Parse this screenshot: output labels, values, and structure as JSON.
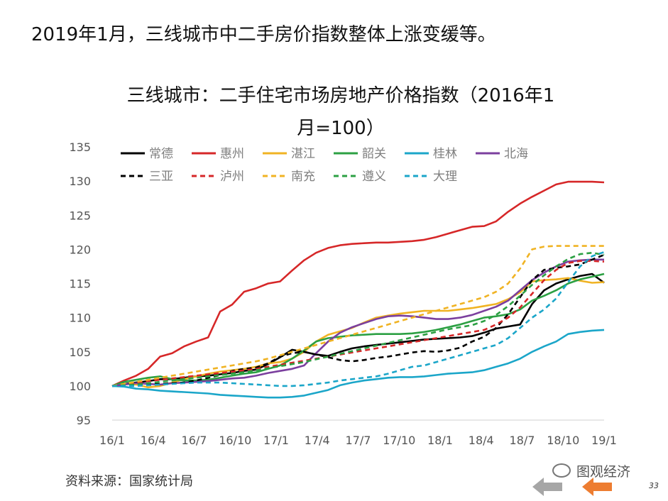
{
  "headline": "2019年1月，三线城市中二手房价指数整体上涨变缓等。",
  "source": "资料来源：国家统计局",
  "brand": "图观经济",
  "page_number": "33",
  "nav": {
    "prev_icon": "arrow-left-icon",
    "next_icon": "arrow-left-icon",
    "prev_color": "#a6a6a6",
    "next_color": "#ed7d31"
  },
  "chart_data": {
    "type": "line",
    "title_line1": "三线城市：二手住宅市场房地产价格指数（2016年1",
    "title_line2": "月=100）",
    "x_tick_labels": [
      "16/1",
      "16/4",
      "16/7",
      "16/10",
      "17/1",
      "17/4",
      "17/7",
      "17/10",
      "18/1",
      "18/4",
      "18/7",
      "18/10",
      "19/1"
    ],
    "ylim": [
      95,
      135
    ],
    "y_ticks": [
      95,
      100,
      105,
      110,
      115,
      120,
      125,
      130,
      135
    ],
    "legend_position": "top-left",
    "grid": false,
    "series": [
      {
        "name": "常德",
        "color": "#000000",
        "dash": false,
        "values": [
          100,
          100.3,
          100.5,
          100.7,
          101,
          101,
          101.2,
          101.4,
          101.5,
          101.7,
          101.9,
          102.2,
          102.4,
          103.2,
          104.2,
          105.3,
          105,
          104.6,
          104.4,
          105,
          105.5,
          105.8,
          106,
          106.2,
          106.4,
          106.6,
          106.8,
          106.9,
          107,
          107.1,
          107.3,
          107.8,
          108.4,
          108.7,
          109,
          112,
          114,
          115,
          115.6,
          116.1,
          116.4,
          115.1
        ]
      },
      {
        "name": "惠州",
        "color": "#d62728",
        "dash": false,
        "values": [
          100,
          100.8,
          101.5,
          102.5,
          104.3,
          104.8,
          105.8,
          106.5,
          107.1,
          110.9,
          111.9,
          113.8,
          114.3,
          115,
          115.3,
          116.9,
          118.4,
          119.5,
          120.2,
          120.6,
          120.8,
          120.9,
          121,
          121,
          121.1,
          121.2,
          121.4,
          121.8,
          122.3,
          122.8,
          123.3,
          123.4,
          124.1,
          125.5,
          126.7,
          127.7,
          128.6,
          129.5,
          129.9,
          129.9,
          129.9,
          129.8
        ]
      },
      {
        "name": "湛江",
        "color": "#f0b323",
        "dash": false,
        "values": [
          100,
          100.3,
          100.2,
          99.8,
          100,
          100.5,
          101,
          101.4,
          101.8,
          102.1,
          102.3,
          102.5,
          102.8,
          103.3,
          103.5,
          104,
          105,
          106.5,
          107.5,
          108,
          108.5,
          109.3,
          110,
          110.3,
          110.6,
          110.8,
          111,
          111,
          111,
          111.2,
          111.4,
          111.7,
          112,
          112.7,
          113.7,
          115.3,
          115.5,
          115.6,
          115.8,
          115.4,
          115.1,
          115.2
        ]
      },
      {
        "name": "韶关",
        "color": "#2ca043",
        "dash": false,
        "values": [
          100,
          100.6,
          100.9,
          101.2,
          101.4,
          101,
          100.8,
          100.8,
          100.9,
          101.2,
          101.5,
          101.8,
          102,
          102.5,
          103,
          104,
          105.2,
          106.5,
          107,
          107.2,
          107.4,
          107.5,
          107.6,
          107.6,
          107.6,
          107.7,
          107.9,
          108.2,
          108.6,
          109,
          109.5,
          110,
          110.2,
          110.5,
          111.2,
          112.5,
          113.2,
          114,
          115,
          115.6,
          116,
          116.4
        ]
      },
      {
        "name": "桂林",
        "color": "#1ba6c9",
        "dash": false,
        "values": [
          100,
          99.9,
          99.6,
          99.5,
          99.3,
          99.2,
          99.1,
          99,
          98.9,
          98.7,
          98.6,
          98.5,
          98.4,
          98.3,
          98.3,
          98.4,
          98.6,
          99,
          99.4,
          100.1,
          100.5,
          100.8,
          101,
          101.2,
          101.3,
          101.3,
          101.4,
          101.6,
          101.8,
          101.9,
          102,
          102.3,
          102.8,
          103.3,
          104,
          105,
          105.8,
          106.5,
          107.6,
          107.9,
          108.1,
          108.2
        ]
      },
      {
        "name": "北海",
        "color": "#7b3f9e",
        "dash": false,
        "values": [
          100,
          100.2,
          100.4,
          100.3,
          100.2,
          100.4,
          100.5,
          100.6,
          100.7,
          100.9,
          101.1,
          101.2,
          101.5,
          101.9,
          102.2,
          102.5,
          103,
          104.8,
          106.5,
          107.8,
          108.6,
          109.2,
          109.8,
          110.2,
          110.3,
          110.2,
          110,
          109.8,
          109.8,
          110,
          110.4,
          111,
          111.6,
          112.5,
          114,
          115.5,
          116.6,
          117.5,
          118.2,
          118.4,
          118.5,
          118.5
        ]
      },
      {
        "name": "三亚",
        "color": "#000000",
        "dash": true,
        "values": [
          100,
          100.1,
          100.2,
          100.3,
          100.3,
          100.4,
          100.5,
          100.8,
          101.2,
          101.6,
          102.2,
          102.5,
          102.7,
          103.3,
          104.3,
          104.8,
          105,
          104.6,
          104.2,
          103.8,
          103.6,
          103.8,
          104.1,
          104.3,
          104.6,
          104.9,
          105.1,
          105,
          105.2,
          105.6,
          106.5,
          107.2,
          108.5,
          110.5,
          113,
          115.5,
          117,
          117.3,
          117.5,
          117.8,
          118.5,
          119.2
        ]
      },
      {
        "name": "泸州",
        "color": "#d62728",
        "dash": true,
        "values": [
          100,
          100.3,
          100.5,
          100.7,
          100.9,
          101.1,
          101.3,
          101.5,
          101.7,
          101.9,
          102.1,
          102.3,
          102.5,
          102.8,
          103.1,
          103.4,
          103.7,
          104,
          104.3,
          104.6,
          104.9,
          105.2,
          105.5,
          105.8,
          106.1,
          106.4,
          106.7,
          107,
          107.3,
          107.6,
          107.9,
          108.2,
          109,
          110,
          111.5,
          113.5,
          115.5,
          117,
          118,
          118.3,
          118.3,
          118.2
        ]
      },
      {
        "name": "南充",
        "color": "#f0b323",
        "dash": true,
        "values": [
          100,
          100.3,
          100.6,
          100.9,
          101.2,
          101.5,
          101.8,
          102.1,
          102.4,
          102.7,
          103,
          103.3,
          103.6,
          104,
          104.5,
          105,
          105.5,
          106,
          106.5,
          107,
          107.5,
          108,
          108.5,
          109,
          109.5,
          110,
          110.5,
          111,
          111.5,
          112,
          112.5,
          113,
          113.8,
          115,
          117.2,
          120,
          120.4,
          120.5,
          120.5,
          120.5,
          120.5,
          120.5
        ]
      },
      {
        "name": "遵义",
        "color": "#2ca043",
        "dash": true,
        "values": [
          100,
          100.1,
          100.2,
          100.4,
          100.6,
          100.8,
          101,
          101.2,
          101.4,
          101.6,
          101.8,
          102,
          102.3,
          102.6,
          102.9,
          103.2,
          103.5,
          103.9,
          104.3,
          104.7,
          105.1,
          105.5,
          105.9,
          106.3,
          106.7,
          107.1,
          107.5,
          107.9,
          108.3,
          108.6,
          108.9,
          109.5,
          110.4,
          111.7,
          113.2,
          114.8,
          116.2,
          117.5,
          118.6,
          119.3,
          119.5,
          119.2
        ]
      },
      {
        "name": "大理",
        "color": "#1ba6c9",
        "dash": true,
        "values": [
          100,
          100,
          100,
          100.1,
          100.2,
          100.3,
          100.4,
          100.5,
          100.5,
          100.5,
          100.4,
          100.3,
          100.2,
          100.1,
          100,
          100,
          100.1,
          100.3,
          100.5,
          100.8,
          101,
          101.2,
          101.4,
          101.8,
          102.3,
          102.8,
          103,
          103.5,
          104,
          104.5,
          105,
          105.5,
          106,
          107,
          108.5,
          110,
          111.2,
          112.8,
          115.2,
          117.5,
          119,
          119.6
        ]
      }
    ]
  }
}
